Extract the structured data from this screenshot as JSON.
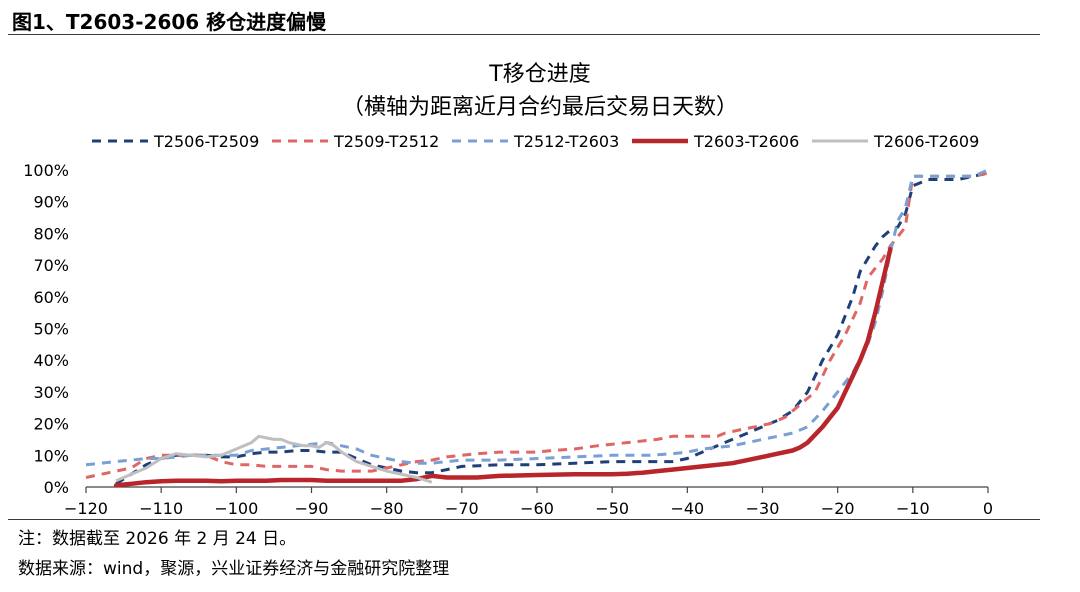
{
  "figure_title": "图1、T2603-2606 移仓进度偏慢",
  "note": "注：数据截至 2026 年 2 月 24 日。",
  "source": "数据来源：wind，聚源，兴业证券经济与金融研究院整理",
  "chart_data": {
    "type": "line",
    "title": "T移仓进度",
    "subtitle": "（横轴为距离近月合约最后交易日天数）",
    "xlabel": "",
    "ylabel": "",
    "xlim": [
      -120,
      0
    ],
    "ylim": [
      0,
      100
    ],
    "x_ticks": [
      -120,
      -110,
      -100,
      -90,
      -80,
      -70,
      -60,
      -50,
      -40,
      -30,
      -20,
      -10,
      0
    ],
    "x_tick_labels": [
      "−120",
      "−110",
      "−100",
      "−90",
      "−80",
      "−70",
      "−60",
      "−50",
      "−40",
      "−30",
      "−20",
      "−10",
      "0"
    ],
    "y_ticks": [
      0,
      10,
      20,
      30,
      40,
      50,
      60,
      70,
      80,
      90,
      100
    ],
    "y_tick_labels": [
      "0%",
      "10%",
      "20%",
      "30%",
      "40%",
      "50%",
      "60%",
      "70%",
      "80%",
      "90%",
      "100%"
    ],
    "legend_position": "top",
    "series": [
      {
        "name": "T2506-T2509",
        "color": "#1f3f7a",
        "style": "dashed",
        "points": [
          [
            -116,
            1
          ],
          [
            -114,
            4
          ],
          [
            -112,
            7
          ],
          [
            -110,
            9
          ],
          [
            -108,
            10
          ],
          [
            -106,
            10
          ],
          [
            -104,
            10
          ],
          [
            -102,
            9.5
          ],
          [
            -100,
            9.5
          ],
          [
            -98,
            10.5
          ],
          [
            -96,
            11
          ],
          [
            -94,
            11
          ],
          [
            -92,
            11.5
          ],
          [
            -90,
            11.5
          ],
          [
            -88,
            11
          ],
          [
            -86,
            11
          ],
          [
            -84,
            9
          ],
          [
            -82,
            7
          ],
          [
            -80,
            6
          ],
          [
            -78,
            5
          ],
          [
            -76,
            4.5
          ],
          [
            -74,
            4.5
          ],
          [
            -72,
            5.5
          ],
          [
            -70,
            6.5
          ],
          [
            -65,
            7
          ],
          [
            -60,
            7
          ],
          [
            -55,
            7.5
          ],
          [
            -50,
            8
          ],
          [
            -45,
            8
          ],
          [
            -42,
            8
          ],
          [
            -40,
            9
          ],
          [
            -38,
            11
          ],
          [
            -36,
            13
          ],
          [
            -34,
            15
          ],
          [
            -32,
            17
          ],
          [
            -30,
            19
          ],
          [
            -28,
            21
          ],
          [
            -26,
            24
          ],
          [
            -24,
            30
          ],
          [
            -22,
            40
          ],
          [
            -20,
            48
          ],
          [
            -18,
            60
          ],
          [
            -17,
            68
          ],
          [
            -16,
            72
          ],
          [
            -15,
            76
          ],
          [
            -14,
            79
          ],
          [
            -13,
            81
          ],
          [
            -12,
            82
          ],
          [
            -11,
            86
          ],
          [
            -10,
            95
          ],
          [
            -9,
            96
          ],
          [
            -8,
            97
          ],
          [
            -6,
            97
          ],
          [
            -4,
            97
          ],
          [
            -2,
            98
          ],
          [
            0,
            99
          ]
        ]
      },
      {
        "name": "T2509-T2512",
        "color": "#e06666",
        "style": "dashed",
        "points": [
          [
            -120,
            3
          ],
          [
            -118,
            4
          ],
          [
            -116,
            5
          ],
          [
            -114,
            6
          ],
          [
            -112,
            9
          ],
          [
            -110,
            10
          ],
          [
            -108,
            10
          ],
          [
            -106,
            10
          ],
          [
            -104,
            10
          ],
          [
            -102,
            8
          ],
          [
            -100,
            7
          ],
          [
            -98,
            7
          ],
          [
            -96,
            6.5
          ],
          [
            -94,
            6.5
          ],
          [
            -92,
            6.5
          ],
          [
            -90,
            6.5
          ],
          [
            -88,
            5.5
          ],
          [
            -86,
            5
          ],
          [
            -84,
            5
          ],
          [
            -82,
            5
          ],
          [
            -80,
            6
          ],
          [
            -78,
            7
          ],
          [
            -76,
            8
          ],
          [
            -74,
            8.5
          ],
          [
            -72,
            9.5
          ],
          [
            -70,
            10
          ],
          [
            -68,
            10.5
          ],
          [
            -65,
            11
          ],
          [
            -60,
            11
          ],
          [
            -58,
            11.5
          ],
          [
            -55,
            12
          ],
          [
            -52,
            13
          ],
          [
            -50,
            13.5
          ],
          [
            -48,
            14
          ],
          [
            -46,
            14.5
          ],
          [
            -44,
            15
          ],
          [
            -42,
            16
          ],
          [
            -40,
            16
          ],
          [
            -38,
            16
          ],
          [
            -36,
            16
          ],
          [
            -35,
            17
          ],
          [
            -33,
            18
          ],
          [
            -31,
            19
          ],
          [
            -29,
            20
          ],
          [
            -27,
            22
          ],
          [
            -25,
            26
          ],
          [
            -23,
            30
          ],
          [
            -21,
            40
          ],
          [
            -19,
            48
          ],
          [
            -17,
            58
          ],
          [
            -16,
            66
          ],
          [
            -14,
            72
          ],
          [
            -13,
            76
          ],
          [
            -12,
            79
          ],
          [
            -11,
            82
          ],
          [
            -10,
            98
          ],
          [
            -8,
            98
          ],
          [
            -6,
            98
          ],
          [
            -4,
            98
          ],
          [
            -2,
            98
          ],
          [
            0,
            99
          ]
        ]
      },
      {
        "name": "T2512-T2603",
        "color": "#7a9fd4",
        "style": "dashed",
        "points": [
          [
            -120,
            7
          ],
          [
            -118,
            7.5
          ],
          [
            -116,
            8
          ],
          [
            -114,
            8.5
          ],
          [
            -112,
            9
          ],
          [
            -110,
            9
          ],
          [
            -108,
            9.5
          ],
          [
            -106,
            10
          ],
          [
            -104,
            10
          ],
          [
            -102,
            10
          ],
          [
            -100,
            10
          ],
          [
            -98,
            11.5
          ],
          [
            -96,
            12
          ],
          [
            -94,
            12.5
          ],
          [
            -92,
            13
          ],
          [
            -90,
            13.5
          ],
          [
            -88,
            14
          ],
          [
            -86,
            13
          ],
          [
            -84,
            12
          ],
          [
            -82,
            10
          ],
          [
            -80,
            9
          ],
          [
            -78,
            8
          ],
          [
            -76,
            7.5
          ],
          [
            -74,
            7.5
          ],
          [
            -72,
            8
          ],
          [
            -70,
            8.5
          ],
          [
            -65,
            8.5
          ],
          [
            -60,
            9
          ],
          [
            -55,
            9.5
          ],
          [
            -50,
            10
          ],
          [
            -45,
            10
          ],
          [
            -42,
            10.5
          ],
          [
            -40,
            11
          ],
          [
            -38,
            12
          ],
          [
            -36,
            12.5
          ],
          [
            -34,
            13
          ],
          [
            -32,
            14
          ],
          [
            -30,
            15
          ],
          [
            -28,
            16
          ],
          [
            -26,
            17
          ],
          [
            -24,
            19
          ],
          [
            -22,
            24
          ],
          [
            -20,
            30
          ],
          [
            -18,
            36
          ],
          [
            -16,
            45
          ],
          [
            -15,
            52
          ],
          [
            -14,
            62
          ],
          [
            -13,
            74
          ],
          [
            -12,
            84
          ],
          [
            -11,
            88
          ],
          [
            -10,
            98
          ],
          [
            -8,
            98
          ],
          [
            -6,
            98
          ],
          [
            -4,
            98
          ],
          [
            -2,
            98
          ],
          [
            0,
            100
          ]
        ]
      },
      {
        "name": "T2603-T2606",
        "color": "#b8262b",
        "style": "solid",
        "points": [
          [
            -116,
            0.5
          ],
          [
            -114,
            1
          ],
          [
            -112,
            1.5
          ],
          [
            -110,
            1.8
          ],
          [
            -108,
            2
          ],
          [
            -106,
            2
          ],
          [
            -104,
            2
          ],
          [
            -102,
            1.8
          ],
          [
            -100,
            2
          ],
          [
            -98,
            2
          ],
          [
            -96,
            2
          ],
          [
            -94,
            2.2
          ],
          [
            -92,
            2.2
          ],
          [
            -90,
            2.2
          ],
          [
            -88,
            2
          ],
          [
            -86,
            2
          ],
          [
            -84,
            2
          ],
          [
            -82,
            2
          ],
          [
            -80,
            2
          ],
          [
            -78,
            2
          ],
          [
            -76,
            2.5
          ],
          [
            -74,
            3.5
          ],
          [
            -72,
            3
          ],
          [
            -70,
            3
          ],
          [
            -68,
            3
          ],
          [
            -65,
            3.5
          ],
          [
            -60,
            3.8
          ],
          [
            -55,
            4
          ],
          [
            -50,
            4
          ],
          [
            -48,
            4.2
          ],
          [
            -46,
            4.5
          ],
          [
            -44,
            5
          ],
          [
            -42,
            5.5
          ],
          [
            -40,
            6
          ],
          [
            -38,
            6.5
          ],
          [
            -36,
            7
          ],
          [
            -34,
            7.5
          ],
          [
            -32,
            8.5
          ],
          [
            -30,
            9.5
          ],
          [
            -28,
            10.5
          ],
          [
            -26,
            11.5
          ],
          [
            -25,
            12.5
          ],
          [
            -24,
            14
          ],
          [
            -23,
            16.5
          ],
          [
            -22,
            19
          ],
          [
            -21,
            22
          ],
          [
            -20,
            25
          ],
          [
            -19,
            30
          ],
          [
            -18,
            35
          ],
          [
            -17,
            40
          ],
          [
            -16,
            46
          ],
          [
            -15,
            55
          ],
          [
            -14,
            65
          ],
          [
            -13,
            75
          ]
        ]
      },
      {
        "name": "T2606-T2609",
        "color": "#bfbfbf",
        "style": "solid",
        "points": [
          [
            -116,
            2
          ],
          [
            -114,
            4
          ],
          [
            -112,
            6
          ],
          [
            -110,
            9
          ],
          [
            -108,
            10.5
          ],
          [
            -106,
            10
          ],
          [
            -104,
            9.5
          ],
          [
            -102,
            10
          ],
          [
            -100,
            12
          ],
          [
            -98,
            14
          ],
          [
            -97,
            16
          ],
          [
            -96,
            15.5
          ],
          [
            -95,
            15
          ],
          [
            -94,
            15
          ],
          [
            -93,
            14
          ],
          [
            -92,
            13.5
          ],
          [
            -91,
            13
          ],
          [
            -90,
            13
          ],
          [
            -89,
            12.5
          ],
          [
            -88,
            14
          ],
          [
            -87,
            13
          ],
          [
            -86,
            11
          ],
          [
            -84,
            8
          ],
          [
            -82,
            6.5
          ],
          [
            -80,
            5
          ],
          [
            -78,
            4
          ],
          [
            -76,
            3
          ],
          [
            -74,
            1.5
          ]
        ]
      }
    ]
  }
}
